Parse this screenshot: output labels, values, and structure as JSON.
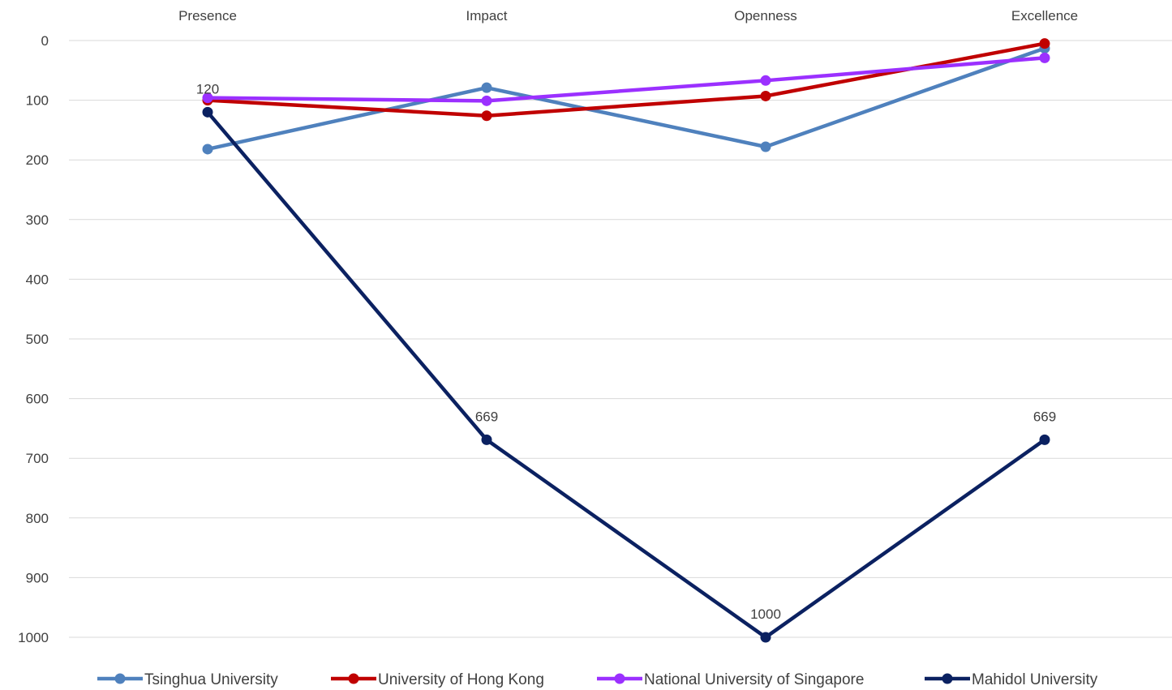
{
  "chart_data": {
    "type": "line",
    "categories": [
      "Presence",
      "Impact",
      "Openness",
      "Excellence"
    ],
    "y_axis": {
      "reversed": true,
      "min": 0,
      "max": 1000,
      "ticks": [
        0,
        100,
        200,
        300,
        400,
        500,
        600,
        700,
        800,
        900,
        1000
      ]
    },
    "x_axis_position": "top",
    "grid": "horizontal",
    "legend_position": "bottom",
    "series": [
      {
        "name": "Tsinghua University",
        "color": "#4f81bd",
        "values": [
          182,
          79,
          178,
          13
        ]
      },
      {
        "name": "University of Hong Kong",
        "color": "#c00000",
        "values": [
          100,
          126,
          93,
          5
        ]
      },
      {
        "name": "National University of Singapore",
        "color": "#9b30ff",
        "values": [
          96,
          101,
          67,
          29
        ]
      },
      {
        "name": "Mahidol University",
        "color": "#0b2161",
        "values": [
          120,
          669,
          1000,
          669
        ],
        "data_labels": [
          "120",
          "669",
          "1000",
          "669"
        ]
      }
    ]
  }
}
